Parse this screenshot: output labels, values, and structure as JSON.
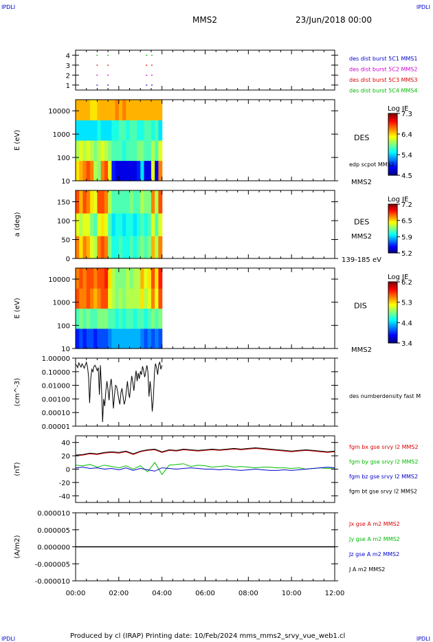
{
  "corners": {
    "tl": "IPDLI",
    "tr": "IPDLI",
    "bl": "IPDLI",
    "br": "IPDLI"
  },
  "header": {
    "title": "MMS2",
    "date": "23/Jun/2018 00:00"
  },
  "footer": "Produced by cl (IRAP)   Printing date: 10/Feb/2024   mms_mms2_srvy_vue_web1.cl",
  "x_axis": {
    "ticks": [
      "00:00",
      "02:00",
      "04:00",
      "06:00",
      "08:00",
      "10:00",
      "12:00"
    ]
  },
  "chart_data": [
    {
      "type": "scatter",
      "ylim": [
        0.5,
        4.5
      ],
      "yticks": [
        "1",
        "2",
        "3",
        "4"
      ],
      "legend": [
        {
          "label": "des dist burst 5C1 MMS1",
          "color": "#0000cc"
        },
        {
          "label": "des dist burst 5C2 MMS2",
          "color": "#cc00cc"
        },
        {
          "label": "des dist burst 5C3 MMS3",
          "color": "#dd0000"
        },
        {
          "label": "des dist burst 5C4 MMS4",
          "color": "#00bb00"
        }
      ],
      "series": [
        {
          "y": 1,
          "color": "#0000cc",
          "x": [
            "00:58",
            "01:28",
            "03:15",
            "03:30"
          ]
        },
        {
          "y": 2,
          "color": "#cc00cc",
          "x": [
            "00:58",
            "01:28",
            "03:15",
            "03:30"
          ]
        },
        {
          "y": 3,
          "color": "#dd0000",
          "x": [
            "00:58",
            "01:28",
            "03:15",
            "03:30"
          ]
        },
        {
          "y": 4,
          "color": "#00bb00",
          "x": [
            "00:58",
            "01:28",
            "03:15",
            "03:30"
          ]
        }
      ]
    },
    {
      "type": "heatmap",
      "ylabel": "E (eV)",
      "yscale": "log",
      "ylim": [
        10,
        30000
      ],
      "yticks": [
        "10",
        "100",
        "1000",
        "10000"
      ],
      "x_extent": [
        "00:00",
        "04:00"
      ],
      "label": "DES",
      "sublabel": "edp scpot MMS2",
      "bottom_label": "MMS2",
      "colorbar": {
        "title": "Log JE",
        "min": 4.5,
        "max": 7.5,
        "ticks": [
          "7.3",
          "6.4",
          "5.4",
          "4.5"
        ]
      },
      "pattern": [
        [
          0.65,
          0.55,
          0.35,
          0.7
        ],
        [
          0.7,
          0.6,
          0.35,
          0.7
        ],
        [
          0.75,
          0.55,
          0.35,
          0.7
        ],
        [
          0.8,
          0.6,
          0.35,
          0.7
        ],
        [
          0.75,
          0.55,
          0.35,
          0.65
        ],
        [
          0.55,
          0.5,
          0.35,
          0.65
        ],
        [
          0.5,
          0.55,
          0.4,
          0.7
        ],
        [
          0.75,
          0.6,
          0.35,
          0.7
        ],
        [
          0.8,
          0.55,
          0.35,
          0.7
        ],
        [
          0.6,
          0.5,
          0.35,
          0.7
        ],
        [
          0.15,
          0.45,
          0.4,
          0.7
        ],
        [
          0.1,
          0.45,
          0.4,
          0.75
        ],
        [
          0.1,
          0.45,
          0.45,
          0.7
        ],
        [
          0.1,
          0.4,
          0.45,
          0.75
        ],
        [
          0.1,
          0.45,
          0.4,
          0.7
        ],
        [
          0.1,
          0.45,
          0.45,
          0.7
        ],
        [
          0.1,
          0.45,
          0.45,
          0.7
        ],
        [
          0.15,
          0.5,
          0.4,
          0.7
        ],
        [
          0.35,
          0.5,
          0.4,
          0.7
        ],
        [
          0.1,
          0.45,
          0.45,
          0.7
        ],
        [
          0.1,
          0.45,
          0.45,
          0.7
        ],
        [
          0.6,
          0.55,
          0.4,
          0.7
        ],
        [
          0.1,
          0.45,
          0.45,
          0.7
        ],
        [
          0.75,
          0.6,
          0.35,
          0.7
        ]
      ]
    },
    {
      "type": "heatmap",
      "ylabel": "a (deg)",
      "ylim": [
        0,
        180
      ],
      "yticks": [
        "0",
        "50",
        "100",
        "150"
      ],
      "x_extent": [
        "00:00",
        "04:00"
      ],
      "label": "DES",
      "sublabel": "MMS2",
      "bottom_label": "139-185 eV",
      "colorbar": {
        "title": "Log JE",
        "min": 5.2,
        "max": 7.2,
        "ticks": [
          "7.2",
          "6.5",
          "5.9",
          "5.2"
        ]
      },
      "pattern": [
        [
          0.75,
          0.6,
          0.8
        ],
        [
          0.65,
          0.55,
          0.7
        ],
        [
          0.75,
          0.6,
          0.8
        ],
        [
          0.7,
          0.6,
          0.75
        ],
        [
          0.6,
          0.5,
          0.65
        ],
        [
          0.55,
          0.45,
          0.6
        ],
        [
          0.75,
          0.6,
          0.8
        ],
        [
          0.8,
          0.65,
          0.8
        ],
        [
          0.75,
          0.6,
          0.75
        ],
        [
          0.5,
          0.45,
          0.55
        ],
        [
          0.4,
          0.35,
          0.45
        ],
        [
          0.4,
          0.4,
          0.45
        ],
        [
          0.45,
          0.4,
          0.45
        ],
        [
          0.4,
          0.35,
          0.45
        ],
        [
          0.4,
          0.4,
          0.45
        ],
        [
          0.45,
          0.4,
          0.5
        ],
        [
          0.4,
          0.35,
          0.45
        ],
        [
          0.45,
          0.4,
          0.45
        ],
        [
          0.5,
          0.45,
          0.55
        ],
        [
          0.45,
          0.4,
          0.5
        ],
        [
          0.5,
          0.45,
          0.5
        ],
        [
          0.7,
          0.6,
          0.75
        ],
        [
          0.55,
          0.45,
          0.55
        ],
        [
          0.75,
          0.6,
          0.8
        ]
      ]
    },
    {
      "type": "heatmap",
      "ylabel": "E (eV)",
      "yscale": "log",
      "ylim": [
        10,
        30000
      ],
      "yticks": [
        "10",
        "100",
        "1000",
        "10000"
      ],
      "x_extent": [
        "00:00",
        "04:00"
      ],
      "label": "DIS",
      "bottom_label": "MMS2",
      "colorbar": {
        "title": "Log JE",
        "min": 3.4,
        "max": 6.2,
        "ticks": [
          "6.2",
          "5.3",
          "4.4",
          "3.4"
        ]
      },
      "pattern": [
        [
          0.15,
          0.45,
          0.8,
          0.75
        ],
        [
          0.2,
          0.5,
          0.75,
          0.8
        ],
        [
          0.15,
          0.45,
          0.75,
          0.75
        ],
        [
          0.2,
          0.5,
          0.8,
          0.8
        ],
        [
          0.2,
          0.45,
          0.75,
          0.8
        ],
        [
          0.15,
          0.45,
          0.7,
          0.75
        ],
        [
          0.2,
          0.5,
          0.75,
          0.8
        ],
        [
          0.2,
          0.5,
          0.8,
          0.8
        ],
        [
          0.2,
          0.5,
          0.8,
          0.85
        ],
        [
          0.25,
          0.45,
          0.6,
          0.65
        ],
        [
          0.3,
          0.45,
          0.55,
          0.55
        ],
        [
          0.3,
          0.4,
          0.5,
          0.5
        ],
        [
          0.3,
          0.45,
          0.55,
          0.5
        ],
        [
          0.3,
          0.4,
          0.5,
          0.5
        ],
        [
          0.3,
          0.45,
          0.55,
          0.55
        ],
        [
          0.3,
          0.45,
          0.55,
          0.5
        ],
        [
          0.3,
          0.4,
          0.55,
          0.55
        ],
        [
          0.3,
          0.45,
          0.55,
          0.55
        ],
        [
          0.25,
          0.45,
          0.65,
          0.7
        ],
        [
          0.2,
          0.4,
          0.55,
          0.6
        ],
        [
          0.25,
          0.45,
          0.6,
          0.65
        ],
        [
          0.2,
          0.5,
          0.75,
          0.8
        ],
        [
          0.25,
          0.45,
          0.6,
          0.65
        ],
        [
          0.2,
          0.5,
          0.8,
          0.85
        ]
      ]
    },
    {
      "type": "line",
      "ylabel": "(cm^-3)",
      "yscale": "log",
      "ylim": [
        1e-05,
        1
      ],
      "yticks": [
        "0.00001",
        "0.00010",
        "0.00100",
        "0.01000",
        "0.10000",
        "1.00000"
      ],
      "series_label": "des numberdensity fast M",
      "series": [
        {
          "color": "#000000",
          "x": [
            0,
            3,
            6,
            9,
            12,
            15,
            18,
            21,
            24,
            27,
            30,
            33,
            36,
            39,
            42,
            45,
            48,
            51,
            54,
            57,
            60,
            63,
            66,
            69,
            72,
            75,
            78,
            81,
            84,
            87,
            90,
            93,
            96,
            99,
            102,
            105,
            108,
            111,
            114,
            117,
            120,
            123,
            126,
            129,
            132,
            135,
            138,
            141,
            144,
            147,
            150,
            153,
            156,
            159,
            162,
            165,
            168,
            171,
            174,
            177,
            180,
            183,
            186,
            189,
            192,
            195,
            198,
            201,
            204,
            207,
            210,
            213,
            216,
            219,
            222,
            225,
            228,
            231,
            234,
            237,
            240
          ],
          "y": [
            0.35,
            0.28,
            0.2,
            0.45,
            0.3,
            0.22,
            0.38,
            0.27,
            0.18,
            0.3,
            0.5,
            0.22,
            0.05,
            0.0005,
            0.03,
            0.15,
            0.1,
            0.25,
            0.3,
            0.2,
            0.12,
            0.2,
            0.002,
            0.3,
            0.006,
            2e-05,
            0.001,
            0.0003,
            0.004,
            0.02,
            0.005,
            0.0008,
            0.01,
            0.03,
            0.004,
            0.0002,
            0.002,
            0.01,
            0.008,
            0.003,
            0.001,
            0.0004,
            0.003,
            0.006,
            0.0015,
            0.0004,
            0.0008,
            0.004,
            0.02,
            0.003,
            0.0012,
            0.009,
            0.05,
            0.015,
            0.004,
            0.03,
            0.12,
            0.02,
            0.08,
            0.03,
            0.11,
            0.06,
            0.25,
            0.12,
            0.04,
            0.1,
            0.3,
            0.1,
            0.0015,
            0.02,
            0.003,
            0.00012,
            0.001,
            0.08,
            0.4,
            0.2,
            0.06,
            0.35,
            0.5,
            0.15,
            0.3
          ]
        }
      ]
    },
    {
      "type": "line",
      "ylabel": "(nT)",
      "ylim": [
        -50,
        50
      ],
      "yticks": [
        "-40",
        "-20",
        "0",
        "20",
        "40"
      ],
      "legend": [
        {
          "label": "fgm bx gse srvy l2 MMS2",
          "color": "#dd0000"
        },
        {
          "label": "fgm by gse srvy l2 MMS2",
          "color": "#00bb00"
        },
        {
          "label": "fgm bz gse srvy l2 MMS2",
          "color": "#0000cc"
        },
        {
          "label": "fgm bt gse srvy l2 MMS2",
          "color": "#000000"
        }
      ],
      "series": [
        {
          "color": "#00bb00",
          "x": [
            0,
            20,
            40,
            60,
            80,
            100,
            120,
            140,
            160,
            180,
            200,
            220,
            240,
            260,
            280,
            300,
            320,
            340,
            360,
            380,
            400,
            420,
            440,
            460,
            480,
            500,
            520,
            540,
            560,
            580,
            600,
            620,
            640,
            660,
            680,
            700,
            720
          ],
          "y": [
            6,
            5,
            7,
            3,
            6,
            4,
            2,
            5,
            0,
            5,
            -4,
            10,
            -8,
            6,
            7,
            8,
            4,
            6,
            5,
            3,
            4,
            5,
            3,
            4,
            3,
            2,
            3,
            3,
            2,
            2,
            1,
            2,
            0,
            1,
            2,
            1,
            2
          ]
        },
        {
          "color": "#0000cc",
          "x": [
            0,
            20,
            40,
            60,
            80,
            100,
            120,
            140,
            160,
            180,
            200,
            220,
            240,
            260,
            280,
            300,
            320,
            340,
            360,
            380,
            400,
            420,
            440,
            460,
            480,
            500,
            520,
            540,
            560,
            580,
            600,
            620,
            640,
            660,
            680,
            700,
            720
          ],
          "y": [
            2,
            3,
            1,
            2,
            0,
            1,
            -1,
            2,
            -2,
            1,
            -1,
            -3,
            2,
            1,
            0,
            1,
            2,
            1,
            0,
            0,
            -1,
            0,
            -1,
            -2,
            -1,
            0,
            -1,
            -2,
            -2,
            -1,
            -2,
            -1,
            0,
            1,
            2,
            3,
            2
          ]
        },
        {
          "color": "#dd0000",
          "x": [
            0,
            20,
            40,
            60,
            80,
            100,
            120,
            140,
            160,
            180,
            200,
            220,
            240,
            260,
            280,
            300,
            320,
            340,
            360,
            380,
            400,
            420,
            440,
            460,
            480,
            500,
            520,
            540,
            560,
            580,
            600,
            620,
            640,
            660,
            680,
            700,
            720
          ],
          "y": [
            20,
            21,
            23,
            22,
            24,
            25,
            24,
            26,
            22,
            26,
            28,
            29,
            25,
            28,
            27,
            29,
            28,
            27,
            28,
            29,
            28,
            29,
            30,
            29,
            30,
            31,
            30,
            29,
            28,
            27,
            26,
            27,
            28,
            27,
            26,
            25,
            26
          ]
        },
        {
          "color": "#000000",
          "x": [
            0,
            20,
            40,
            60,
            80,
            100,
            120,
            140,
            160,
            180,
            200,
            220,
            240,
            260,
            280,
            300,
            320,
            340,
            360,
            380,
            400,
            420,
            440,
            460,
            480,
            500,
            520,
            540,
            560,
            580,
            600,
            620,
            640,
            660,
            680,
            700,
            720
          ],
          "y": [
            21,
            22,
            24,
            23,
            25,
            26,
            25,
            27,
            23,
            27,
            29,
            30,
            26,
            29,
            28,
            30,
            29,
            28,
            29,
            30,
            29,
            30,
            31,
            30,
            31,
            32,
            31,
            30,
            29,
            28,
            27,
            28,
            29,
            28,
            27,
            26,
            27
          ]
        }
      ]
    },
    {
      "type": "line",
      "ylabel": "(A/m2)",
      "ylim": [
        -1e-05,
        1e-05
      ],
      "yticks": [
        "-0.000010",
        "-0.000005",
        "0.000000",
        "0.000005",
        "0.000010"
      ],
      "legend": [
        {
          "label": "Jx gse A m2 MMS2",
          "color": "#dd0000"
        },
        {
          "label": "Jy gse A m2 MMS2",
          "color": "#00bb00"
        },
        {
          "label": "Jz gse A m2 MMS2",
          "color": "#0000cc"
        },
        {
          "label": "J A m2 MMS2",
          "color": "#000000"
        }
      ],
      "series": [
        {
          "color": "#000000",
          "x": [
            0,
            720
          ],
          "y": [
            0,
            0
          ]
        }
      ]
    }
  ]
}
